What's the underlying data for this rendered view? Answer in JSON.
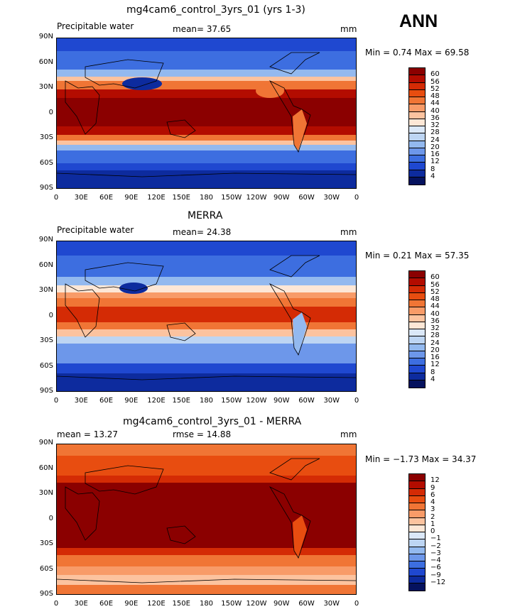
{
  "season": "ANN",
  "lat_ticks": [
    "90N",
    "60N",
    "30N",
    "0",
    "30S",
    "60S",
    "90S"
  ],
  "lon_ticks": [
    "0",
    "30E",
    "60E",
    "90E",
    "120E",
    "150E",
    "180",
    "150W",
    "120W",
    "90W",
    "60W",
    "30W",
    "0"
  ],
  "panels": [
    {
      "title": "mg4cam6_control_3yrs_01 (yrs 1-3)",
      "left_label": "Precipitable water",
      "center_label": "mean=   37.65",
      "units": "mm",
      "minmax": "Min =    0.74 Max =   69.58",
      "levels": [
        "60",
        "56",
        "52",
        "48",
        "44",
        "40",
        "36",
        "32",
        "28",
        "24",
        "20",
        "16",
        "12",
        "8",
        "4"
      ],
      "colors": [
        "#8b0000",
        "#b30c00",
        "#d42b05",
        "#e84d10",
        "#f07535",
        "#f89b68",
        "#fcc39f",
        "#fde7d6",
        "#dbe8f8",
        "#bdd5f3",
        "#93b9ef",
        "#6d97ea",
        "#3d6ee0",
        "#1f48d0",
        "#0d2b9e",
        "#05125e"
      ]
    },
    {
      "title": "MERRA",
      "left_label": "Precipitable water",
      "center_label": "mean=   24.38",
      "units": "mm",
      "minmax": "Min =    0.21 Max =   57.35",
      "levels": [
        "60",
        "56",
        "52",
        "48",
        "44",
        "40",
        "36",
        "32",
        "28",
        "24",
        "20",
        "16",
        "12",
        "8",
        "4"
      ],
      "colors": [
        "#8b0000",
        "#b30c00",
        "#d42b05",
        "#e84d10",
        "#f07535",
        "#f89b68",
        "#fcc39f",
        "#fde7d6",
        "#dbe8f8",
        "#bdd5f3",
        "#93b9ef",
        "#6d97ea",
        "#3d6ee0",
        "#1f48d0",
        "#0d2b9e",
        "#05125e"
      ]
    },
    {
      "title": "mg4cam6_control_3yrs_01 - MERRA",
      "left_label": "mean =   13.27",
      "center_label": "rmse =   14.88",
      "units": "mm",
      "minmax": "Min =  −1.73 Max =   34.37",
      "levels": [
        "12",
        "9",
        "6",
        "4",
        "3",
        "2",
        "1",
        "0",
        "−1",
        "−2",
        "−3",
        "−4",
        "−6",
        "−9",
        "−12"
      ],
      "colors": [
        "#8b0000",
        "#b30c00",
        "#d42b05",
        "#e84d10",
        "#f07535",
        "#f89b68",
        "#fcc39f",
        "#fde7d6",
        "#dbe8f8",
        "#bdd5f3",
        "#93b9ef",
        "#6d97ea",
        "#3d6ee0",
        "#1f48d0",
        "#0d2b9e",
        "#05125e"
      ]
    }
  ]
}
